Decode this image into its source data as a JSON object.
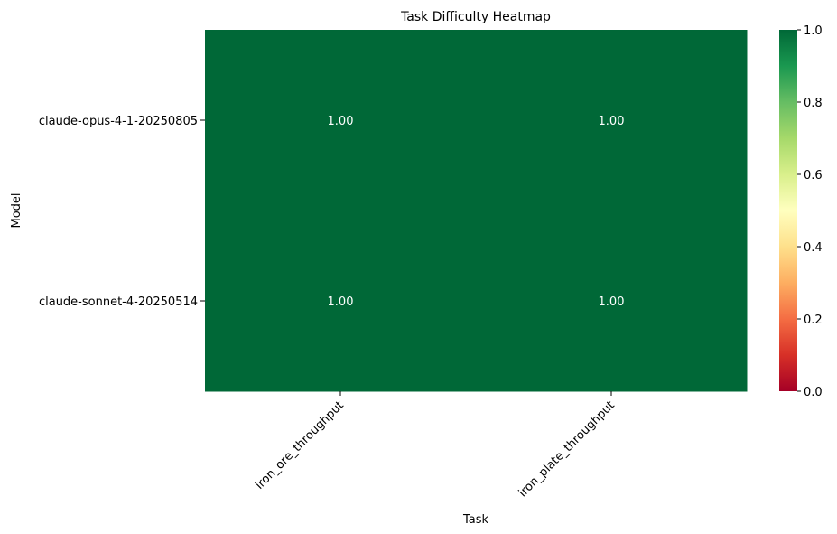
{
  "chart_data": {
    "type": "heatmap",
    "title": "Task Difficulty Heatmap",
    "xlabel": "Task",
    "ylabel": "Model",
    "x_categories": [
      "iron_ore_throughput",
      "iron_plate_throughput"
    ],
    "y_categories": [
      "claude-opus-4-1-20250805",
      "claude-sonnet-4-20250514"
    ],
    "values": [
      [
        1.0,
        1.0
      ],
      [
        1.0,
        1.0
      ]
    ],
    "cell_labels": [
      [
        "1.00",
        "1.00"
      ],
      [
        "1.00",
        "1.00"
      ]
    ],
    "colormap": "RdYlGn",
    "vmin": 0.0,
    "vmax": 1.0,
    "colorbar_ticks": [
      "0.0",
      "0.2",
      "0.4",
      "0.6",
      "0.8",
      "1.0"
    ],
    "colors": {
      "low": "#a50026",
      "high": "#006837",
      "annotation_text": "#ffffff"
    }
  }
}
